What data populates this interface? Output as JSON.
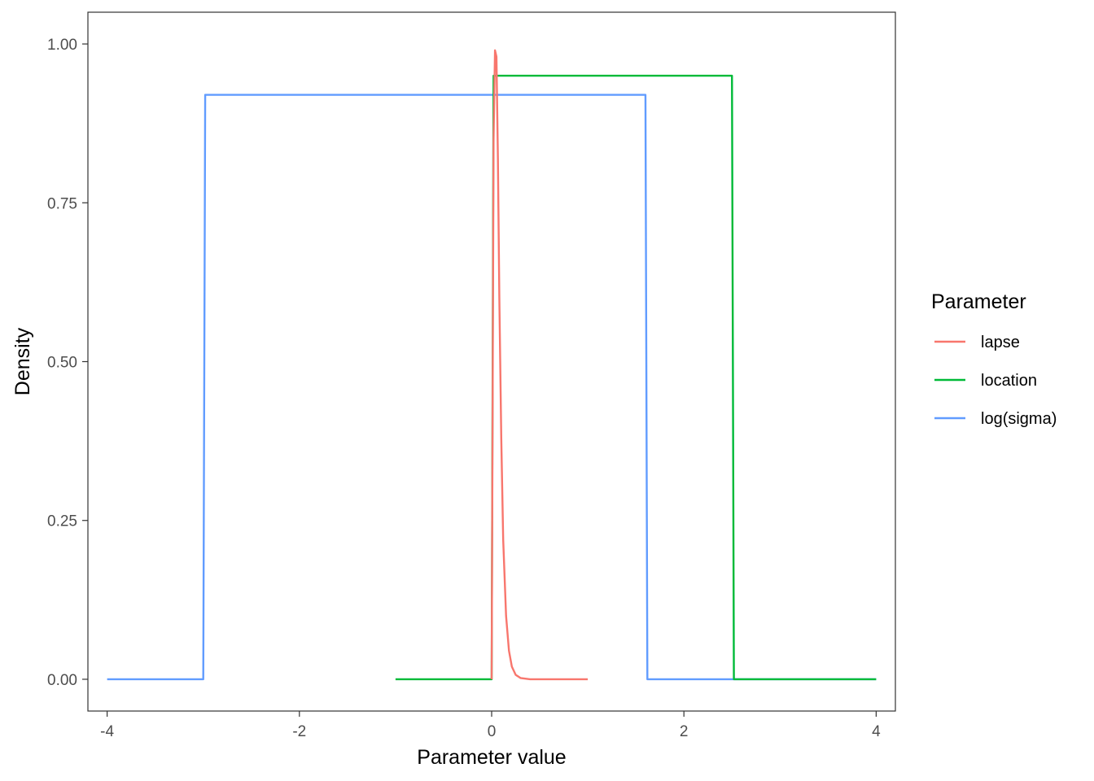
{
  "chart_data": {
    "type": "line",
    "title": "",
    "xlabel": "Parameter value",
    "ylabel": "Density",
    "xlim": [
      -4.2,
      4.2
    ],
    "ylim": [
      -0.05,
      1.05
    ],
    "x_ticks": [
      -4,
      -2,
      0,
      2,
      4
    ],
    "x_tick_labels": [
      "-4",
      "-2",
      "0",
      "2",
      "4"
    ],
    "y_ticks": [
      0,
      0.25,
      0.5,
      0.75,
      1.0
    ],
    "y_tick_labels": [
      "0.00",
      "0.25",
      "0.50",
      "0.75",
      "1.00"
    ],
    "grid": false,
    "legend": {
      "title": "Parameter",
      "placement": "right",
      "entries": [
        "lapse",
        "location",
        "log(sigma)"
      ]
    },
    "series": [
      {
        "name": "lapse",
        "color": "#F8766D",
        "x": [
          0,
          0.02,
          0.035,
          0.05,
          0.065,
          0.08,
          0.1,
          0.12,
          0.15,
          0.18,
          0.21,
          0.25,
          0.3,
          0.4,
          0.6,
          1.0
        ],
        "y": [
          0,
          0.85,
          0.99,
          0.98,
          0.82,
          0.6,
          0.38,
          0.22,
          0.1,
          0.045,
          0.02,
          0.007,
          0.002,
          0,
          0,
          0
        ]
      },
      {
        "name": "location",
        "color": "#00BA38",
        "x": [
          -1,
          0,
          0.02,
          2.5,
          2.52,
          4
        ],
        "y": [
          0,
          0,
          0.95,
          0.95,
          0,
          0
        ]
      },
      {
        "name": "log(sigma)",
        "color": "#619CFF",
        "x": [
          -4,
          -3,
          -2.98,
          1.6,
          1.62,
          4
        ],
        "y": [
          0,
          0,
          0.92,
          0.92,
          0,
          0
        ]
      }
    ]
  }
}
